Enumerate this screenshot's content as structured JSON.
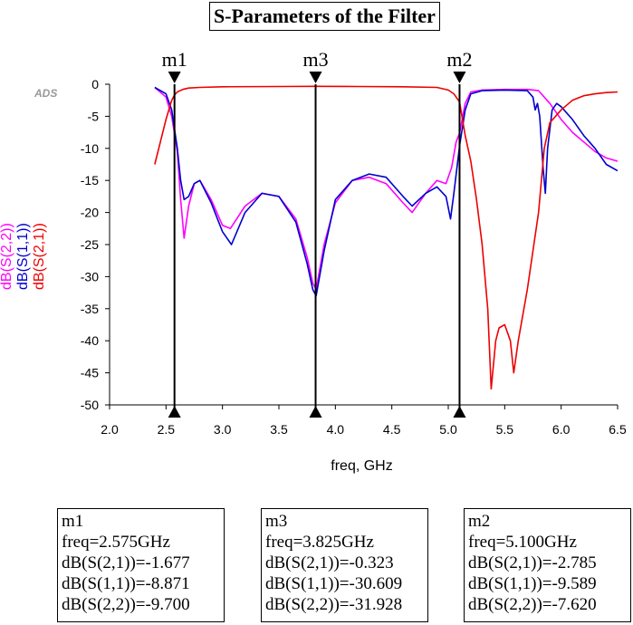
{
  "title": "S-Parameters of the Filter",
  "ads_label": "ADS",
  "colors": {
    "s22": "#ff00ff",
    "s11": "#0000cc",
    "s21": "#ee0000",
    "axis": "#000000"
  },
  "chart_data": {
    "type": "line",
    "xlabel": "freq, GHz",
    "xlim": [
      2.0,
      6.5
    ],
    "ylim": [
      -50,
      0
    ],
    "xticks": [
      "2.0",
      "2.5",
      "3.0",
      "3.5",
      "4.0",
      "4.5",
      "5.0",
      "5.5",
      "6.0",
      "6.5"
    ],
    "yticks": [
      "0",
      "-5",
      "-10",
      "-15",
      "-20",
      "-25",
      "-30",
      "-35",
      "-40",
      "-45",
      "-50"
    ],
    "grid": false,
    "legend": "left-vertical",
    "series": [
      {
        "name": "dB(S(2,2))",
        "color": "#ff00ff",
        "x": [
          2.4,
          2.5,
          2.55,
          2.6,
          2.63,
          2.66,
          2.7,
          2.75,
          2.8,
          2.9,
          3.0,
          3.07,
          3.2,
          3.35,
          3.5,
          3.65,
          3.75,
          3.8,
          3.83,
          3.9,
          4.0,
          4.15,
          4.3,
          4.45,
          4.6,
          4.68,
          4.8,
          4.9,
          4.98,
          5.03,
          5.07,
          5.1,
          5.15,
          5.2,
          5.3,
          5.5,
          5.7,
          5.8,
          5.9,
          6.0,
          6.1,
          6.2,
          6.3,
          6.4,
          6.5
        ],
        "y": [
          -0.5,
          -2,
          -5,
          -10.5,
          -18,
          -24,
          -19,
          -15.5,
          -15,
          -18,
          -22,
          -22.5,
          -19,
          -17,
          -17.5,
          -21,
          -27,
          -31,
          -32,
          -25,
          -18.5,
          -15,
          -14.5,
          -15.5,
          -18.5,
          -20,
          -17,
          -15,
          -15.5,
          -13,
          -9,
          -7.6,
          -3,
          -1.2,
          -0.9,
          -0.8,
          -0.8,
          -1,
          -3,
          -5.5,
          -7.5,
          -9,
          -10.5,
          -11.5,
          -12
        ]
      },
      {
        "name": "dB(S(1,1))",
        "color": "#0000cc",
        "x": [
          2.4,
          2.5,
          2.55,
          2.6,
          2.63,
          2.66,
          2.7,
          2.75,
          2.8,
          2.9,
          3.0,
          3.08,
          3.2,
          3.35,
          3.5,
          3.65,
          3.75,
          3.8,
          3.83,
          3.9,
          4.0,
          4.15,
          4.3,
          4.45,
          4.6,
          4.68,
          4.8,
          4.9,
          4.98,
          5.02,
          5.05,
          5.1,
          5.15,
          5.2,
          5.3,
          5.5,
          5.7,
          5.75,
          5.77,
          5.79,
          5.81,
          5.84,
          5.86,
          5.88,
          5.92,
          5.96,
          6.0,
          6.1,
          6.2,
          6.3,
          6.4,
          6.5
        ],
        "y": [
          -0.5,
          -1.5,
          -4,
          -10,
          -15,
          -18,
          -17.5,
          -15.5,
          -15,
          -18.5,
          -23,
          -25,
          -20,
          -17,
          -17.5,
          -21.5,
          -28,
          -32,
          -33,
          -26,
          -18,
          -15,
          -14,
          -14.5,
          -17.5,
          -19,
          -17,
          -16,
          -17.5,
          -21,
          -17,
          -9.6,
          -4,
          -1.5,
          -1,
          -0.9,
          -1,
          -2,
          -4,
          -3,
          -5,
          -13,
          -17,
          -10,
          -4,
          -3,
          -3.5,
          -5.5,
          -8,
          -10,
          -12.5,
          -13.5
        ]
      },
      {
        "name": "dB(S(2,1))",
        "color": "#ee0000",
        "x": [
          2.4,
          2.45,
          2.5,
          2.55,
          2.575,
          2.6,
          2.65,
          2.7,
          2.8,
          3.0,
          3.5,
          3.825,
          4.2,
          4.6,
          4.9,
          5.0,
          5.05,
          5.1,
          5.15,
          5.2,
          5.25,
          5.3,
          5.35,
          5.38,
          5.42,
          5.45,
          5.5,
          5.55,
          5.58,
          5.62,
          5.7,
          5.8,
          5.85,
          5.9,
          6.0,
          6.1,
          6.2,
          6.3,
          6.4,
          6.5
        ],
        "y": [
          -12.5,
          -9,
          -5.5,
          -2.5,
          -1.677,
          -1.2,
          -0.8,
          -0.6,
          -0.5,
          -0.4,
          -0.35,
          -0.323,
          -0.35,
          -0.4,
          -0.5,
          -0.9,
          -1.5,
          -2.785,
          -8,
          -12,
          -18,
          -25,
          -35,
          -47.5,
          -40,
          -38,
          -37.5,
          -40,
          -45,
          -40,
          -32,
          -20,
          -10,
          -6,
          -4,
          -2.5,
          -1.8,
          -1.5,
          -1.3,
          -1.2
        ]
      }
    ],
    "markers": [
      {
        "name": "m1",
        "x": 2.575
      },
      {
        "name": "m3",
        "x": 3.825
      },
      {
        "name": "m2",
        "x": 5.1
      }
    ]
  },
  "marker_boxes": [
    {
      "name": "m1",
      "freq": "freq=2.575GHz",
      "s21": "dB(S(2,1))=-1.677",
      "s11": "dB(S(1,1))=-8.871",
      "s22": "dB(S(2,2))=-9.700"
    },
    {
      "name": "m3",
      "freq": "freq=3.825GHz",
      "s21": "dB(S(2,1))=-0.323",
      "s11": "dB(S(1,1))=-30.609",
      "s22": "dB(S(2,2))=-31.928"
    },
    {
      "name": "m2",
      "freq": "freq=5.100GHz",
      "s21": "dB(S(2,1))=-2.785",
      "s11": "dB(S(1,1))=-9.589",
      "s22": "dB(S(2,2))=-7.620"
    }
  ]
}
